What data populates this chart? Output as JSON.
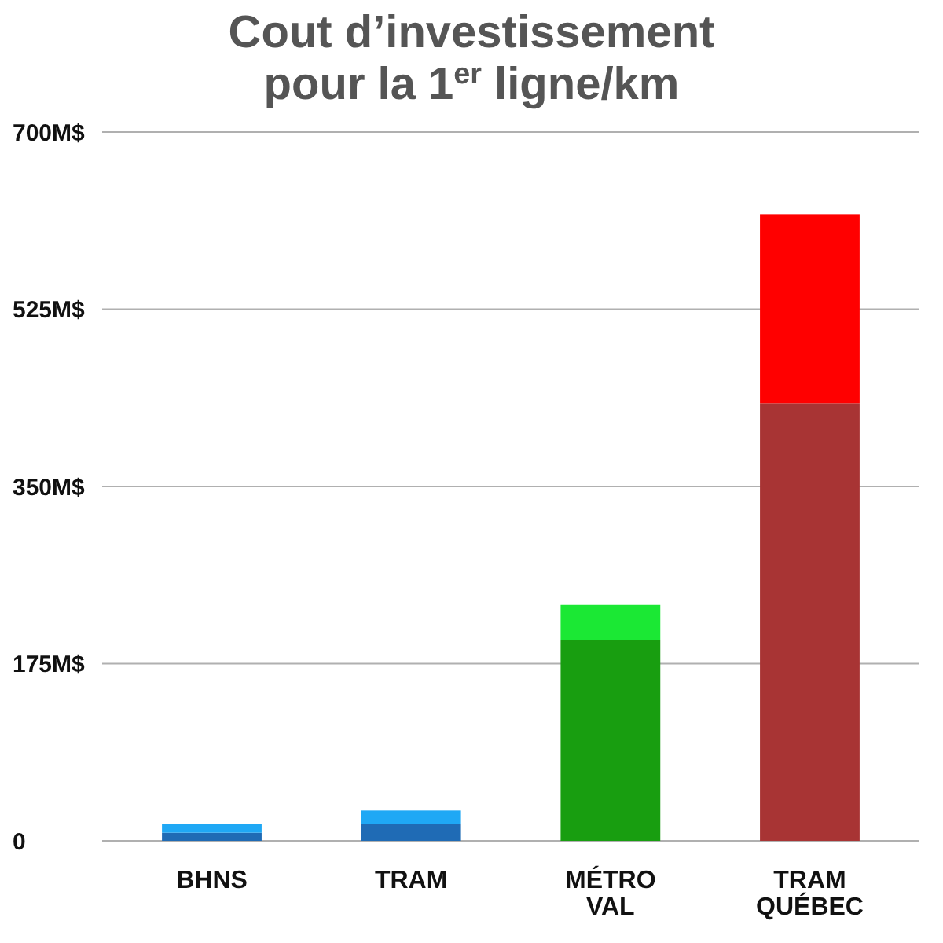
{
  "chart_data": {
    "type": "bar",
    "title": "Cout d’investissement\npour la 1$^{er}$ ligne/km",
    "categories": [
      "BHNS",
      "TRAM",
      "MÉTRO\nVAL",
      "TRAM\nQUÉBEC"
    ],
    "stacked": true,
    "series": [
      {
        "colors": [
          "#1f6bb5",
          "#1f6bb5",
          "#189e10",
          "#a83434"
        ],
        "values": [
          8,
          17,
          198,
          432
        ]
      },
      {
        "colors": [
          "#1fa8f5",
          "#1fa8f5",
          "#1be834",
          "#ff0000"
        ],
        "values": [
          9,
          13,
          35,
          187
        ]
      }
    ],
    "ylim": [
      0,
      700
    ],
    "yticks": [
      0,
      {
        "value": 175,
        "label": "175M$"
      },
      {
        "value": 350,
        "label": "350M$"
      },
      {
        "value": 525,
        "label": "525M$"
      },
      {
        "value": 700,
        "label": "700M$"
      }
    ],
    "grid": "y"
  }
}
